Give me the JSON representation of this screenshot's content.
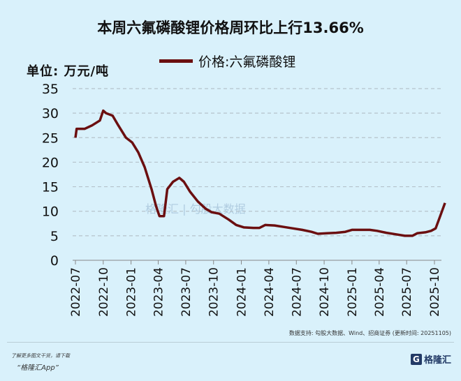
{
  "chart_data": {
    "type": "line",
    "title": "本周六氟磷酸锂价格周环比上行13.66%",
    "unit_label": "单位:  万元/吨",
    "ylim": [
      0,
      35
    ],
    "yticks": [
      0,
      5,
      10,
      15,
      20,
      25,
      30,
      35
    ],
    "xlim": [
      "2022-07-01",
      "2025-11-05"
    ],
    "xticks": [
      "2022-07",
      "2022-10",
      "2023-01",
      "2023-04",
      "2023-07",
      "2023-10",
      "2024-01",
      "2024-04",
      "2024-07",
      "2024-10",
      "2025-01",
      "2025-04",
      "2025-07",
      "2025-10"
    ],
    "grid": "horizontal dashed",
    "legend_position": "top-center",
    "series": [
      {
        "name": "价格:六氟磷酸锂",
        "color": "#6b0f10",
        "x": [
          "2022-07-01",
          "2022-07-05",
          "2022-08-01",
          "2022-08-25",
          "2022-09-20",
          "2022-10-01",
          "2022-10-10",
          "2022-11-01",
          "2022-11-20",
          "2022-12-15",
          "2023-01-05",
          "2023-01-25",
          "2023-02-15",
          "2023-03-10",
          "2023-03-25",
          "2023-04-05",
          "2023-04-20",
          "2023-05-01",
          "2023-05-20",
          "2023-06-10",
          "2023-06-25",
          "2023-07-15",
          "2023-08-10",
          "2023-09-05",
          "2023-09-25",
          "2023-10-20",
          "2023-11-20",
          "2023-12-15",
          "2024-01-10",
          "2024-02-10",
          "2024-03-01",
          "2024-03-20",
          "2024-04-20",
          "2024-05-20",
          "2024-06-20",
          "2024-07-20",
          "2024-08-20",
          "2024-09-10",
          "2024-10-10",
          "2024-11-10",
          "2024-12-10",
          "2025-01-01",
          "2025-02-01",
          "2025-03-01",
          "2025-03-25",
          "2025-04-25",
          "2025-05-25",
          "2025-06-25",
          "2025-07-20",
          "2025-08-05",
          "2025-09-01",
          "2025-09-20",
          "2025-10-05",
          "2025-10-20",
          "2025-11-05"
        ],
        "values": [
          25.0,
          26.8,
          26.8,
          27.5,
          28.5,
          30.5,
          30.0,
          29.5,
          27.5,
          25.0,
          24.0,
          22.0,
          19.0,
          14.5,
          11.0,
          9.0,
          9.0,
          14.5,
          16.0,
          16.8,
          16.0,
          14.0,
          12.0,
          10.5,
          9.8,
          9.5,
          8.3,
          7.2,
          6.7,
          6.6,
          6.6,
          7.2,
          7.1,
          6.8,
          6.5,
          6.2,
          5.8,
          5.4,
          5.5,
          5.6,
          5.8,
          6.2,
          6.2,
          6.2,
          6.0,
          5.6,
          5.3,
          5.0,
          5.0,
          5.5,
          5.7,
          6.0,
          6.5,
          9.0,
          11.7
        ]
      }
    ]
  },
  "watermark": "格隆汇 | 勾股大数据",
  "source": "数据支持: 勾股大数据、Wind、招商证券 (更新时间: 20251105)",
  "footer": {
    "line1": "了解更多图文干货，请下载",
    "line2": "“格隆汇App”",
    "logo_text": "格隆汇",
    "logo_mark": "G"
  }
}
